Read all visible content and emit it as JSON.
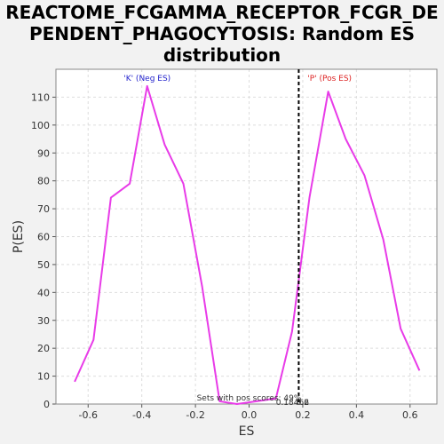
{
  "chart_data": {
    "type": "line",
    "title_lines": [
      "REACTOME_FCGAMMA_RECEPTOR_FCGR_DE",
      "PENDENT_PHAGOCYTOSIS: Random ES",
      "distribution"
    ],
    "xlabel": "ES",
    "ylabel": "P(ES)",
    "xlim": [
      -0.72,
      0.7
    ],
    "ylim": [
      0,
      120
    ],
    "xticks": [
      -0.6,
      -0.4,
      -0.2,
      0.0,
      0.2,
      0.4,
      0.6
    ],
    "xtick_labels": [
      "-0.6",
      "-0.4",
      "-0.2",
      "0.0",
      "0.2",
      "0.4",
      "0.6"
    ],
    "yticks": [
      0,
      10,
      20,
      30,
      40,
      50,
      60,
      70,
      80,
      90,
      100,
      110
    ],
    "ytick_labels": [
      "0",
      "10",
      "20",
      "30",
      "40",
      "50",
      "60",
      "70",
      "80",
      "90",
      "100",
      "110"
    ],
    "grid": true,
    "series": [
      {
        "color": "#e83be8",
        "x": [
          -0.65,
          -0.58,
          -0.515,
          -0.445,
          -0.38,
          -0.315,
          -0.245,
          -0.175,
          -0.11,
          -0.045,
          0.1,
          0.16,
          0.225,
          0.295,
          0.36,
          0.43,
          0.5,
          0.565,
          0.635
        ],
        "y": [
          8,
          23,
          74,
          79,
          114,
          93,
          79,
          42,
          1,
          0,
          2,
          26,
          74,
          112,
          95,
          82,
          59,
          27,
          12
        ]
      }
    ],
    "marker_line": {
      "x": 0.185,
      "color": "#000000"
    },
    "annotations": {
      "neg": {
        "text": "'K' (Neg ES)",
        "color": "#2222cc"
      },
      "pos": {
        "text": "'P' (Pos ES)",
        "color": "#dd2222"
      },
      "pos_scores": {
        "text": "Sets with pos scores: 49%",
        "color": "#333333"
      },
      "marker_value": {
        "text": "0.18466",
        "color": "#333333"
      },
      "small_tick": {
        "text": "0.2",
        "color": "#333333"
      }
    }
  }
}
